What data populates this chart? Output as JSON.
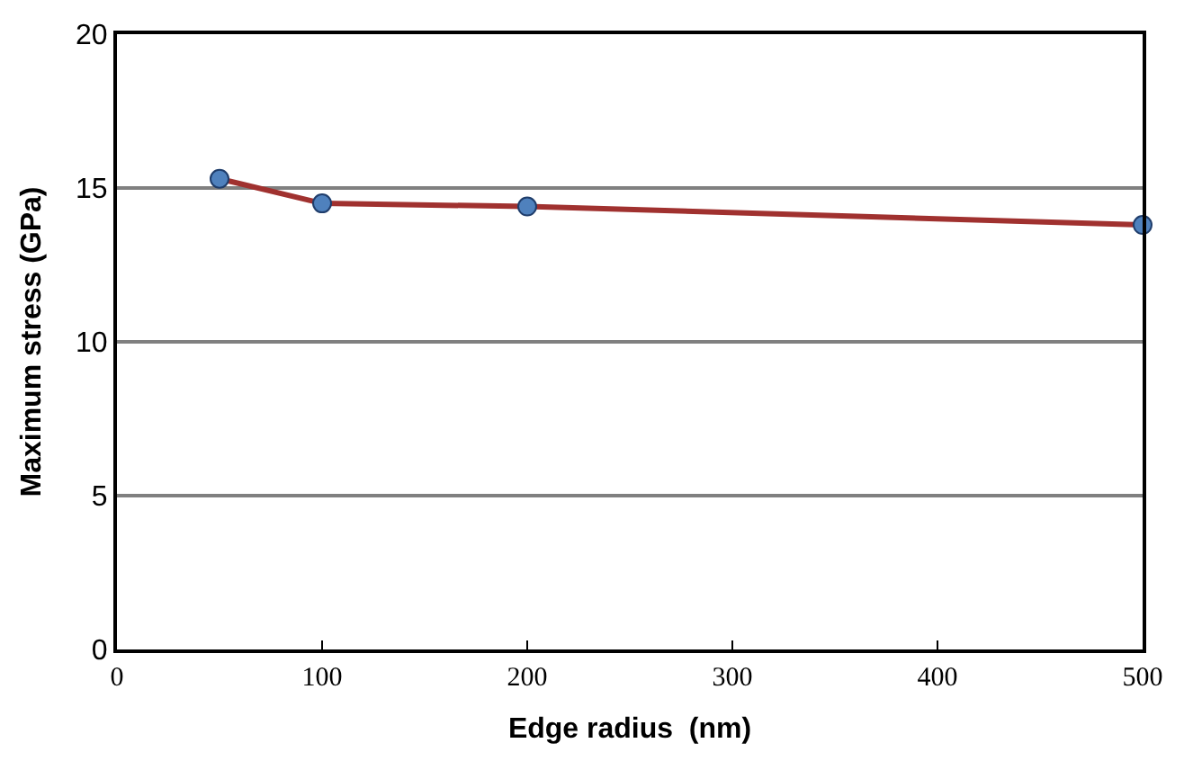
{
  "chart_data": {
    "type": "line",
    "xlabel": "Edge radius  (nm)",
    "ylabel": "Maximum stress (GPa)",
    "x": [
      50,
      100,
      200,
      500
    ],
    "series": [
      {
        "color": "#a0312f",
        "values": [
          15.3,
          14.5,
          14.4,
          13.8
        ]
      }
    ],
    "xlim": [
      0,
      500
    ],
    "xticks": [
      0,
      100,
      200,
      300,
      400,
      500
    ],
    "ylim": [
      0,
      20
    ],
    "yticks": [
      0,
      5,
      10,
      15,
      20
    ],
    "grid": "y",
    "marker": "circle",
    "line_style": "solid",
    "legend": false
  }
}
